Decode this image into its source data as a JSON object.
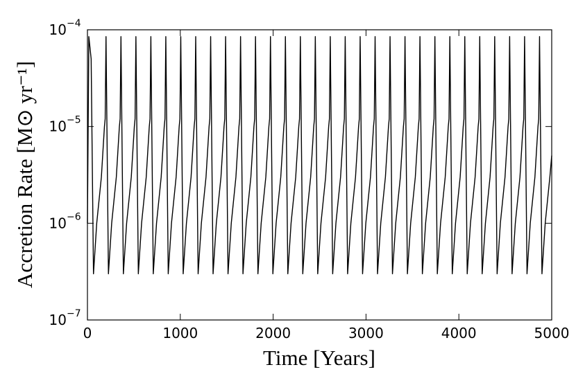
{
  "chart_data": {
    "type": "line",
    "xlabel": "Time [Years]",
    "ylabel": "Accretion Rate [M⊙ yr⁻¹]",
    "color": "#000000",
    "ylog": true,
    "xlim": [
      0,
      5000
    ],
    "xticks": [
      0,
      1000,
      2000,
      3000,
      4000,
      5000
    ],
    "ylim": [
      1e-07,
      0.0001
    ],
    "yticks": [
      {
        "value": 1e-07,
        "label": "10",
        "exponent": "−7"
      },
      {
        "value": 1e-06,
        "label": "10",
        "exponent": "−6"
      },
      {
        "value": 1e-05,
        "label": "10",
        "exponent": "−5"
      },
      {
        "value": 0.0001,
        "label": "10",
        "exponent": "−4"
      }
    ],
    "x": [
      0,
      15,
      40,
      65,
      100,
      150,
      183,
      191,
      200,
      226,
      261,
      311,
      344,
      352,
      361,
      387,
      422,
      472,
      505,
      513,
      522,
      548,
      583,
      633,
      666,
      674,
      683,
      709,
      744,
      794,
      827,
      835,
      844,
      870,
      905,
      955,
      988,
      996,
      1005,
      1031,
      1066,
      1116,
      1149,
      1157,
      1166,
      1192,
      1227,
      1277,
      1310,
      1318,
      1327,
      1353,
      1388,
      1438,
      1471,
      1479,
      1488,
      1514,
      1549,
      1599,
      1632,
      1640,
      1649,
      1675,
      1710,
      1760,
      1793,
      1801,
      1810,
      1836,
      1871,
      1921,
      1954,
      1962,
      1971,
      1997,
      2032,
      2082,
      2115,
      2123,
      2132,
      2158,
      2193,
      2243,
      2276,
      2284,
      2293,
      2319,
      2354,
      2404,
      2437,
      2445,
      2454,
      2480,
      2515,
      2565,
      2598,
      2606,
      2615,
      2641,
      2676,
      2726,
      2759,
      2767,
      2776,
      2802,
      2837,
      2887,
      2920,
      2928,
      2937,
      2963,
      2998,
      3048,
      3081,
      3089,
      3098,
      3124,
      3159,
      3209,
      3242,
      3250,
      3259,
      3285,
      3320,
      3370,
      3403,
      3411,
      3420,
      3446,
      3481,
      3531,
      3564,
      3572,
      3581,
      3607,
      3642,
      3692,
      3725,
      3733,
      3742,
      3768,
      3803,
      3853,
      3886,
      3894,
      3903,
      3929,
      3964,
      4014,
      4047,
      4055,
      4064,
      4090,
      4125,
      4175,
      4208,
      4216,
      4225,
      4251,
      4286,
      4336,
      4369,
      4377,
      4386,
      4412,
      4447,
      4497,
      4530,
      4538,
      4547,
      4573,
      4608,
      4658,
      4691,
      4699,
      4708,
      4734,
      4769,
      4819,
      4852,
      4860,
      4869,
      4895,
      4930,
      4980,
      5000
    ],
    "values": [
      1e-06,
      8.5e-05,
      5e-05,
      3e-07,
      1e-06,
      3e-06,
      1e-05,
      1.2e-05,
      8.5e-05,
      3e-07,
      1e-06,
      3e-06,
      1e-05,
      1.2e-05,
      8.5e-05,
      3e-07,
      1e-06,
      3e-06,
      1e-05,
      1.2e-05,
      8.5e-05,
      3e-07,
      1e-06,
      3e-06,
      1e-05,
      1.2e-05,
      8.5e-05,
      3e-07,
      1e-06,
      3e-06,
      1e-05,
      1.2e-05,
      8.5e-05,
      3e-07,
      1e-06,
      3e-06,
      1e-05,
      1.2e-05,
      8.5e-05,
      3e-07,
      1e-06,
      3e-06,
      1e-05,
      1.2e-05,
      8.5e-05,
      3e-07,
      1e-06,
      3e-06,
      1e-05,
      1.2e-05,
      8.5e-05,
      3e-07,
      1e-06,
      3e-06,
      1e-05,
      1.2e-05,
      8.5e-05,
      3e-07,
      1e-06,
      3e-06,
      1e-05,
      1.2e-05,
      8.5e-05,
      3e-07,
      1e-06,
      3e-06,
      1e-05,
      1.2e-05,
      8.5e-05,
      3e-07,
      1e-06,
      3e-06,
      1e-05,
      1.2e-05,
      8.5e-05,
      3e-07,
      1e-06,
      3e-06,
      1e-05,
      1.2e-05,
      8.5e-05,
      3e-07,
      1e-06,
      3e-06,
      1e-05,
      1.2e-05,
      8.5e-05,
      3e-07,
      1e-06,
      3e-06,
      1e-05,
      1.2e-05,
      8.5e-05,
      3e-07,
      1e-06,
      3e-06,
      1e-05,
      1.2e-05,
      8.5e-05,
      3e-07,
      1e-06,
      3e-06,
      1e-05,
      1.2e-05,
      8.5e-05,
      3e-07,
      1e-06,
      3e-06,
      1e-05,
      1.2e-05,
      8.5e-05,
      3e-07,
      1e-06,
      3e-06,
      1e-05,
      1.2e-05,
      8.5e-05,
      3e-07,
      1e-06,
      3e-06,
      1e-05,
      1.2e-05,
      8.5e-05,
      3e-07,
      1e-06,
      3e-06,
      1e-05,
      1.2e-05,
      8.5e-05,
      3e-07,
      1e-06,
      3e-06,
      1e-05,
      1.2e-05,
      8.5e-05,
      3e-07,
      1e-06,
      3e-06,
      1e-05,
      1.2e-05,
      8.5e-05,
      3e-07,
      1e-06,
      3e-06,
      1e-05,
      1.2e-05,
      8.5e-05,
      3e-07,
      1e-06,
      3e-06,
      1e-05,
      1.2e-05,
      8.5e-05,
      3e-07,
      1e-06,
      3e-06,
      1e-05,
      1.2e-05,
      8.5e-05,
      3e-07,
      1e-06,
      3e-06,
      1e-05,
      1.2e-05,
      8.5e-05,
      3e-07,
      1e-06,
      3e-06,
      1e-05,
      1.2e-05,
      8.5e-05,
      3e-07,
      1e-06,
      3e-06,
      1e-05,
      1.2e-05,
      8.5e-05,
      3e-07,
      1e-06,
      3e-06,
      1e-05,
      1.2e-05,
      8.5e-05,
      3e-07,
      1e-06,
      3e-06,
      5e-06
    ]
  }
}
